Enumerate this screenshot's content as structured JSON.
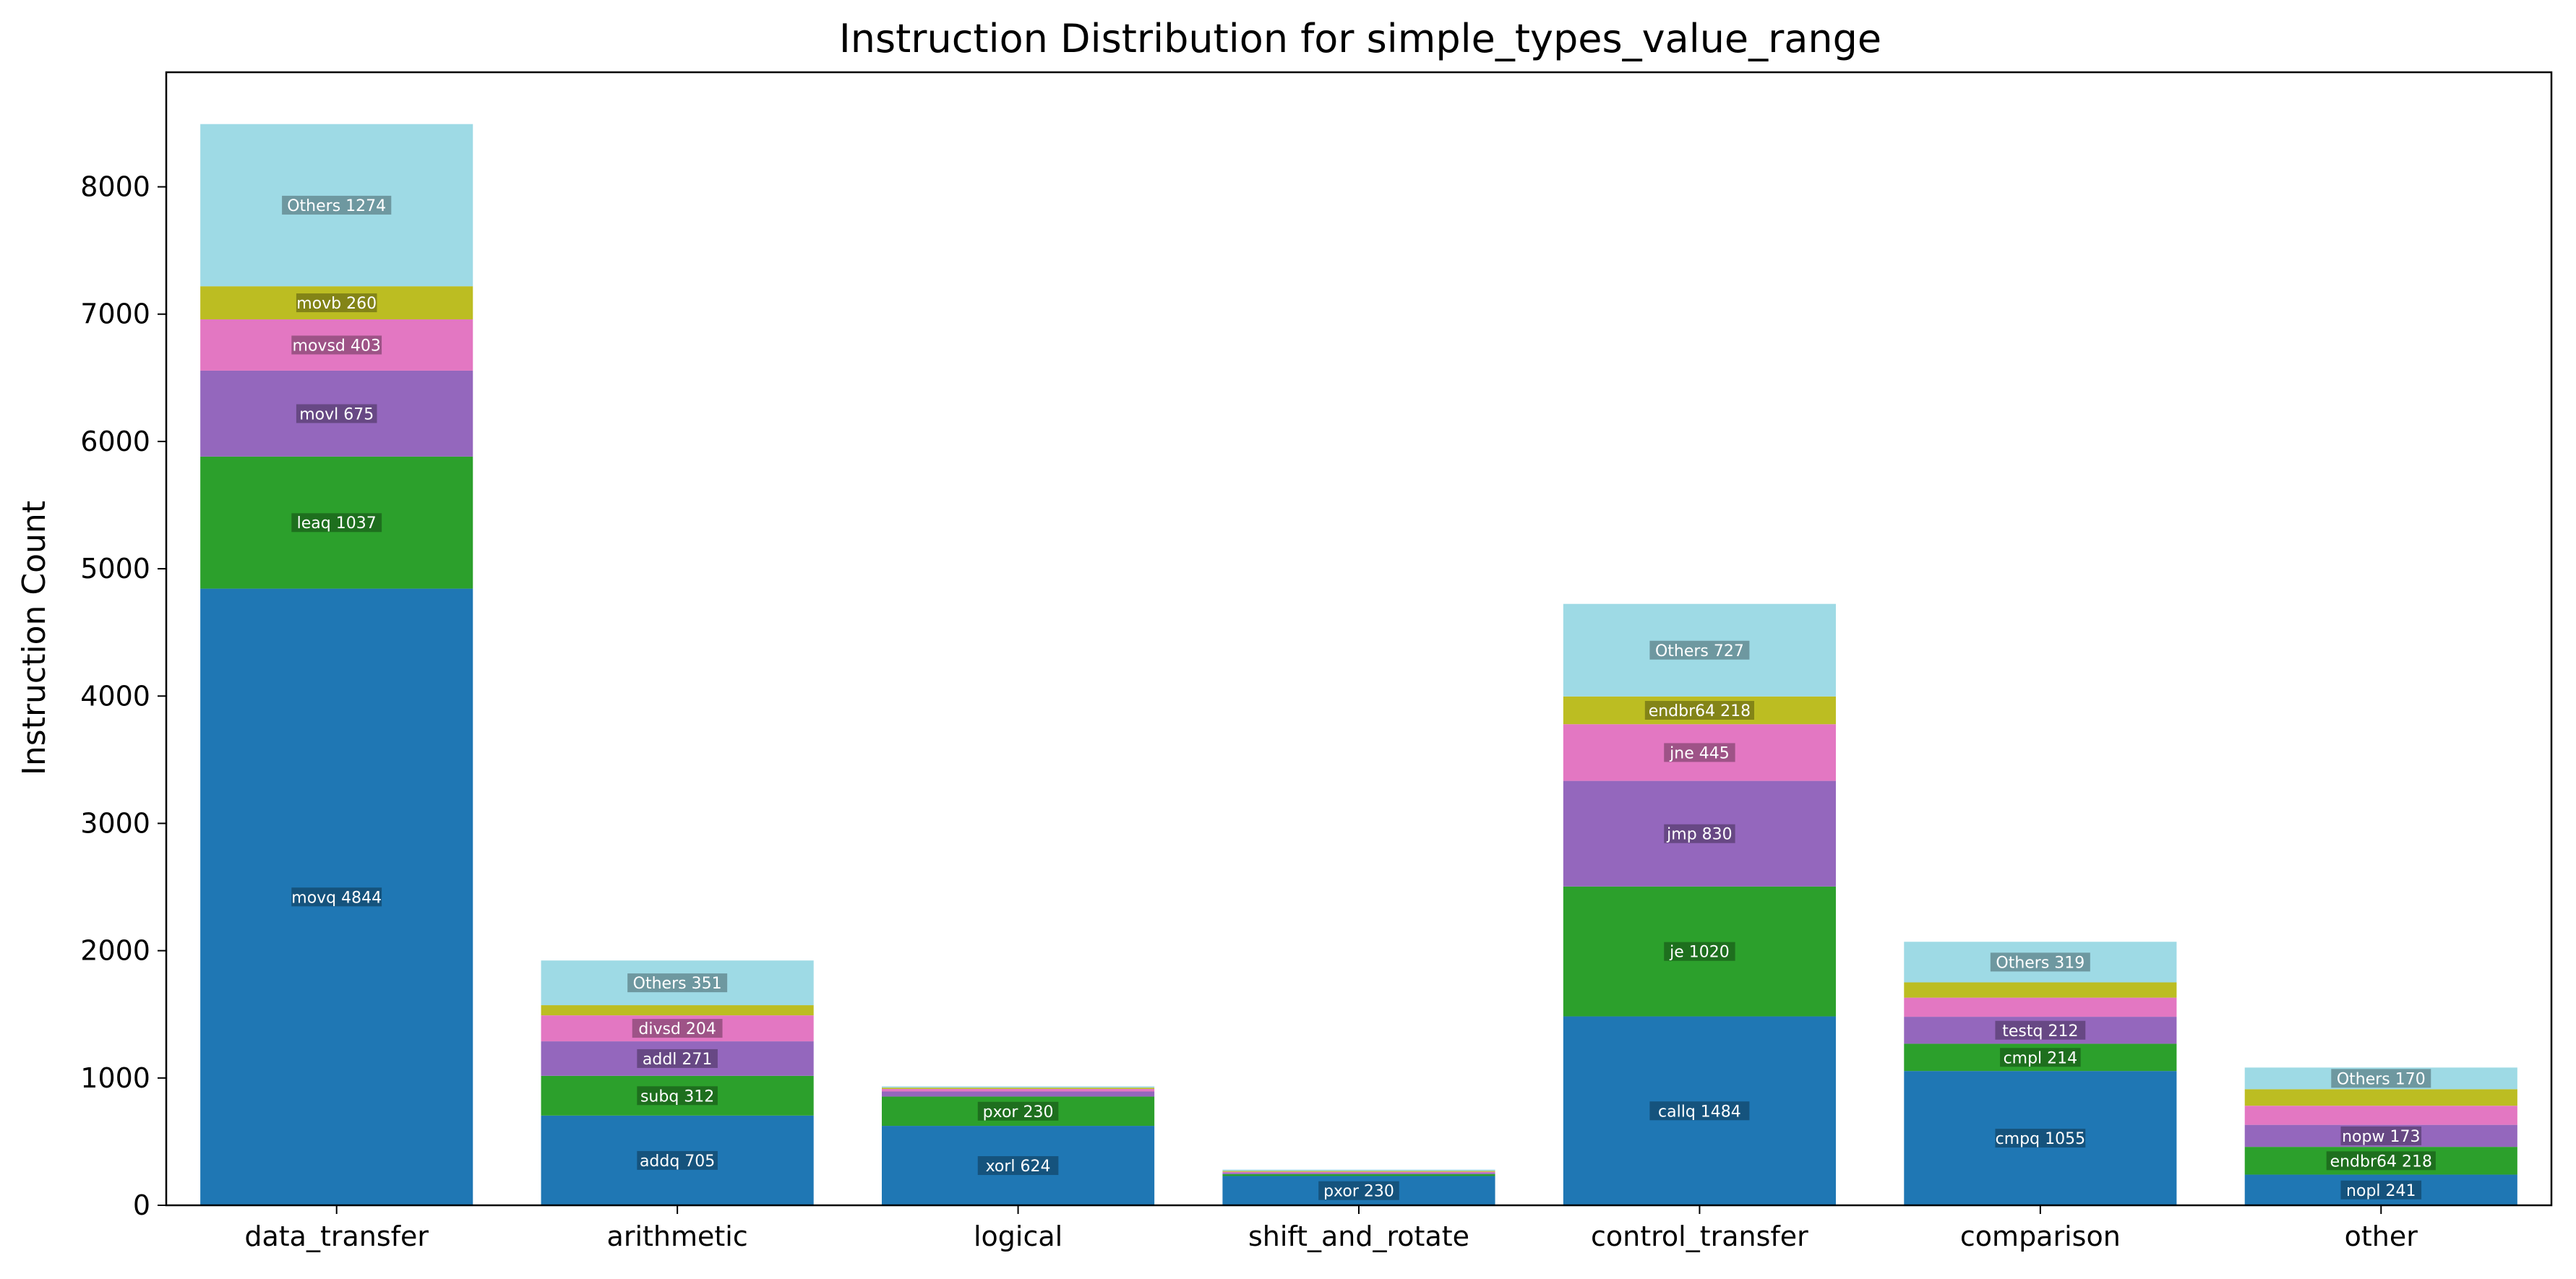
{
  "chart_data": {
    "type": "bar",
    "stacked": true,
    "title": "Instruction Distribution for simple_types_value_range",
    "xlabel": "",
    "ylabel": "Instruction Count",
    "ylim": [
      0,
      8900
    ],
    "yticks": [
      0,
      1000,
      2000,
      3000,
      4000,
      5000,
      6000,
      7000,
      8000
    ],
    "grid": false,
    "legend": "none",
    "segment_colors": [
      "#1f77b4",
      "#2ca02c",
      "#9467bd",
      "#e377c2",
      "#bcbd22",
      "#9edae5"
    ],
    "categories": [
      "data_transfer",
      "arithmetic",
      "logical",
      "shift_and_rotate",
      "control_transfer",
      "comparison",
      "other"
    ],
    "bars": [
      {
        "category": "data_transfer",
        "segments": [
          {
            "label": "movq 4844",
            "value": 4844
          },
          {
            "label": "leaq 1037",
            "value": 1037
          },
          {
            "label": "movl 675",
            "value": 675
          },
          {
            "label": "movsd 403",
            "value": 403
          },
          {
            "label": "movb 260",
            "value": 260
          },
          {
            "label": "Others 1274",
            "value": 1274
          }
        ]
      },
      {
        "category": "arithmetic",
        "segments": [
          {
            "label": "addq 705",
            "value": 705
          },
          {
            "label": "subq 312",
            "value": 312
          },
          {
            "label": "addl 271",
            "value": 271
          },
          {
            "label": "divsd 204",
            "value": 204
          },
          {
            "label": "",
            "value": 80
          },
          {
            "label": "Others 351",
            "value": 351
          }
        ]
      },
      {
        "category": "logical",
        "segments": [
          {
            "label": "xorl 624",
            "value": 624
          },
          {
            "label": "pxor 230",
            "value": 230
          },
          {
            "label": "",
            "value": 40
          },
          {
            "label": "",
            "value": 20
          },
          {
            "label": "",
            "value": 10
          },
          {
            "label": "",
            "value": 10
          }
        ]
      },
      {
        "category": "shift_and_rotate",
        "segments": [
          {
            "label": "pxor 230",
            "value": 230
          },
          {
            "label": "",
            "value": 15
          },
          {
            "label": "",
            "value": 10
          },
          {
            "label": "",
            "value": 8
          },
          {
            "label": "",
            "value": 7
          },
          {
            "label": "",
            "value": 10
          }
        ]
      },
      {
        "category": "control_transfer",
        "segments": [
          {
            "label": "callq 1484",
            "value": 1484
          },
          {
            "label": "je 1020",
            "value": 1020
          },
          {
            "label": "jmp 830",
            "value": 830
          },
          {
            "label": "jne 445",
            "value": 445
          },
          {
            "label": "endbr64 218",
            "value": 218
          },
          {
            "label": "Others 727",
            "value": 727
          }
        ]
      },
      {
        "category": "comparison",
        "segments": [
          {
            "label": "cmpq 1055",
            "value": 1055
          },
          {
            "label": "cmpl 214",
            "value": 214
          },
          {
            "label": "testq 212",
            "value": 212
          },
          {
            "label": "",
            "value": 150
          },
          {
            "label": "",
            "value": 120
          },
          {
            "label": "Others 319",
            "value": 319
          }
        ]
      },
      {
        "category": "other",
        "segments": [
          {
            "label": "nopl 241",
            "value": 241
          },
          {
            "label": "endbr64 218",
            "value": 218
          },
          {
            "label": "nopw 173",
            "value": 173
          },
          {
            "label": "",
            "value": 150
          },
          {
            "label": "",
            "value": 130
          },
          {
            "label": "Others 170",
            "value": 170
          }
        ]
      }
    ]
  }
}
